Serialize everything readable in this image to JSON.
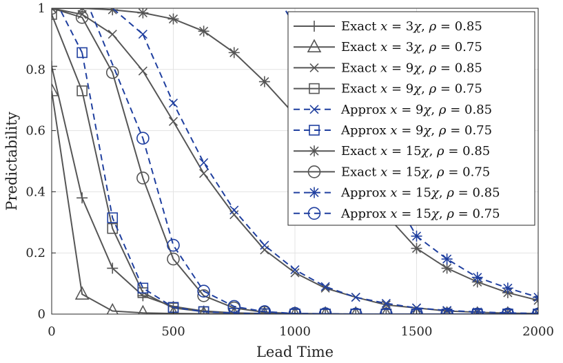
{
  "chart_data": {
    "type": "line",
    "title": "",
    "xlabel": "Lead Time",
    "ylabel": "Predictability",
    "xlim": [
      0,
      2000
    ],
    "ylim": [
      0,
      1
    ],
    "grid": true,
    "legend_position": "top-right",
    "xticks": [
      0,
      500,
      1000,
      1500,
      2000
    ],
    "xtick_labels": [
      "0",
      "500",
      "1000",
      "1500",
      "2000"
    ],
    "yticks": [
      0,
      0.2,
      0.4,
      0.6,
      0.8,
      1
    ],
    "ytick_labels": [
      "0",
      "0.2",
      "0.4",
      "0.6",
      "0.8",
      "1"
    ],
    "colors": {
      "exact": "#555555",
      "approx": "#1f3f9f"
    },
    "series": [
      {
        "name": "Exact x = 3χ, ρ = 0.85",
        "legend_prefix": "Exact",
        "x_mult": "3",
        "rho": "0.85",
        "style": "exact",
        "marker": "plus",
        "x": [
          0,
          125,
          250,
          375,
          500,
          625,
          750,
          875,
          1000,
          1125,
          1250,
          1375,
          1500,
          1625,
          1750,
          1875,
          2000
        ],
        "y": [
          0.81,
          0.38,
          0.15,
          0.06,
          0.025,
          0.01,
          0.004,
          0.002,
          0.001,
          0,
          0,
          0,
          0,
          0,
          0,
          0,
          0
        ]
      },
      {
        "name": "Exact x = 3χ, ρ = 0.75",
        "legend_prefix": "Exact",
        "x_mult": "3",
        "rho": "0.75",
        "style": "exact",
        "marker": "triangle",
        "x": [
          0,
          125,
          250,
          375,
          500,
          625,
          750,
          875,
          1000,
          1125,
          1250,
          1375,
          1500,
          1625,
          1750,
          1875,
          2000
        ],
        "y": [
          0.73,
          0.065,
          0.01,
          0.004,
          0.002,
          0.001,
          0,
          0,
          0,
          0,
          0,
          0,
          0,
          0,
          0,
          0,
          0
        ]
      },
      {
        "name": "Exact x = 9χ, ρ = 0.85",
        "legend_prefix": "Exact",
        "x_mult": "9",
        "rho": "0.85",
        "style": "exact",
        "marker": "x",
        "x": [
          0,
          125,
          250,
          375,
          500,
          625,
          750,
          875,
          1000,
          1125,
          1250,
          1375,
          1500,
          1625,
          1750,
          1875,
          2000
        ],
        "y": [
          1.0,
          0.98,
          0.915,
          0.795,
          0.63,
          0.46,
          0.325,
          0.21,
          0.135,
          0.085,
          0.055,
          0.03,
          0.02,
          0.01,
          0.006,
          0.003,
          0.002
        ]
      },
      {
        "name": "Exact x = 9χ, ρ = 0.75",
        "legend_prefix": "Exact",
        "x_mult": "9",
        "rho": "0.75",
        "style": "exact",
        "marker": "square",
        "x": [
          0,
          125,
          250,
          375,
          500,
          625,
          750,
          875,
          1000,
          1125,
          1250,
          1375,
          1500,
          1625,
          1750,
          1875,
          2000
        ],
        "y": [
          0.98,
          0.73,
          0.28,
          0.07,
          0.02,
          0.008,
          0.003,
          0.001,
          0,
          0,
          0,
          0,
          0,
          0,
          0,
          0,
          0
        ]
      },
      {
        "name": "Approx x = 9χ, ρ = 0.85",
        "legend_prefix": "Approx",
        "x_mult": "9",
        "rho": "0.85",
        "style": "approx",
        "marker": "x",
        "x": [
          375,
          500,
          625,
          750,
          875,
          1000,
          1125,
          1250,
          1375,
          1500,
          1625,
          1750,
          1875,
          2000
        ],
        "y": [
          0.915,
          0.69,
          0.495,
          0.34,
          0.225,
          0.145,
          0.09,
          0.055,
          0.035,
          0.02,
          0.012,
          0.007,
          0.004,
          0.002
        ]
      },
      {
        "name": "Approx x = 9χ, ρ = 0.75",
        "legend_prefix": "Approx",
        "x_mult": "9",
        "rho": "0.75",
        "style": "approx",
        "marker": "square",
        "x": [
          125,
          250,
          375,
          500,
          625,
          750,
          875,
          1000,
          1125,
          1250,
          1375,
          1500,
          1625,
          1750,
          1875,
          2000
        ],
        "y": [
          0.855,
          0.315,
          0.085,
          0.022,
          0.008,
          0.003,
          0.001,
          0,
          0,
          0,
          0,
          0,
          0,
          0,
          0,
          0
        ]
      },
      {
        "name": "Exact x = 15χ, ρ = 0.85",
        "legend_prefix": "Exact",
        "x_mult": "15",
        "rho": "0.85",
        "style": "exact",
        "marker": "star",
        "x": [
          0,
          125,
          250,
          375,
          500,
          625,
          750,
          875,
          1500,
          1625,
          1750,
          1875,
          2000
        ],
        "y": [
          1.0,
          1.0,
          0.995,
          0.985,
          0.965,
          0.925,
          0.855,
          0.76,
          0.215,
          0.15,
          0.105,
          0.07,
          0.045
        ]
      },
      {
        "name": "Exact x = 15χ, ρ = 0.75",
        "legend_prefix": "Exact",
        "x_mult": "15",
        "rho": "0.75",
        "style": "exact",
        "marker": "circle",
        "x": [
          0,
          125,
          250,
          375,
          500,
          625,
          750,
          875,
          1000,
          1125,
          1250,
          1375,
          1500,
          1625,
          1750,
          1875,
          2000
        ],
        "y": [
          1.0,
          0.97,
          0.79,
          0.445,
          0.18,
          0.06,
          0.02,
          0.006,
          0.002,
          0.001,
          0,
          0,
          0,
          0,
          0,
          0,
          0
        ]
      },
      {
        "name": "Approx x = 15χ, ρ = 0.85",
        "legend_prefix": "Approx",
        "x_mult": "15",
        "rho": "0.85",
        "style": "approx",
        "marker": "star",
        "x": [
          1500,
          1625,
          1750,
          1875,
          2000
        ],
        "y": [
          0.255,
          0.18,
          0.12,
          0.085,
          0.055
        ]
      },
      {
        "name": "Approx x = 15χ, ρ = 0.75",
        "legend_prefix": "Approx",
        "x_mult": "15",
        "rho": "0.75",
        "style": "approx",
        "marker": "circle",
        "x": [
          375,
          500,
          625,
          750,
          875,
          1000,
          1125,
          1250,
          1375,
          1500,
          1625,
          1750,
          1875,
          2000
        ],
        "y": [
          0.575,
          0.225,
          0.075,
          0.025,
          0.008,
          0.002,
          0.001,
          0,
          0,
          0,
          0,
          0,
          0,
          0
        ]
      }
    ],
    "extra_approx_segments": [
      {
        "for": "Approx x = 9χ, ρ = 0.85",
        "x": [
          0,
          250,
          375
        ],
        "y": [
          1.35,
          1.0,
          0.915
        ]
      },
      {
        "for": "Approx x = 9χ, ρ = 0.75",
        "x": [
          0,
          125
        ],
        "y": [
          1.05,
          0.855
        ]
      },
      {
        "for": "Approx x = 15χ, ρ = 0.75",
        "x": [
          0,
          375
        ],
        "y": [
          1.3,
          0.575
        ]
      },
      {
        "for": "Approx x = 15χ, ρ = 0.85",
        "x": [
          920,
          1500
        ],
        "y": [
          1.05,
          0.255
        ]
      }
    ]
  }
}
